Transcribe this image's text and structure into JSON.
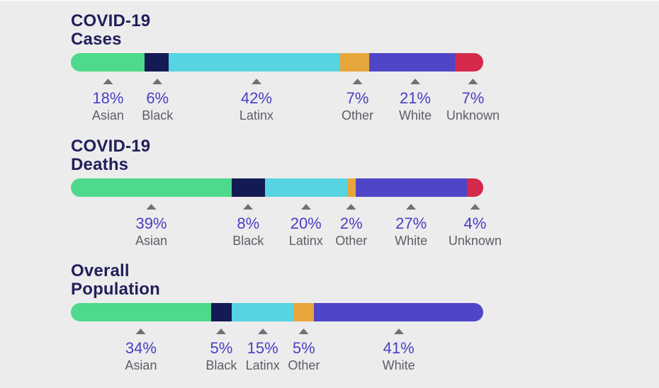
{
  "palette": {
    "background": "#ECECED",
    "title_color": "#21205A",
    "percent_color": "#4A3EC1",
    "label_color": "#5D5D66",
    "marker_color": "#70707A",
    "series_colors": {
      "Asian": "#4FD98C",
      "Black": "#141A53",
      "Latinx": "#57D4E1",
      "Other": "#E7A63C",
      "White": "#4F46C7",
      "Unknown": "#D4294A"
    }
  },
  "chart_data": [
    {
      "type": "bar",
      "layout": "horizontal-stacked",
      "title": "COVID-19 Cases",
      "title_lines": [
        "COVID-19",
        "Cases"
      ],
      "categories": [
        "Asian",
        "Black",
        "Latinx",
        "Other",
        "White",
        "Unknown"
      ],
      "values": [
        18,
        6,
        42,
        7,
        21,
        7
      ],
      "value_labels": [
        "18%",
        "6%",
        "42%",
        "7%",
        "21%",
        "7%"
      ],
      "range": [
        0,
        100
      ],
      "grid": false,
      "legend": "below-inline"
    },
    {
      "type": "bar",
      "layout": "horizontal-stacked",
      "title": "COVID-19 Deaths",
      "title_lines": [
        "COVID-19",
        "Deaths"
      ],
      "categories": [
        "Asian",
        "Black",
        "Latinx",
        "Other",
        "White",
        "Unknown"
      ],
      "values": [
        39,
        8,
        20,
        2,
        27,
        4
      ],
      "value_labels": [
        "39%",
        "8%",
        "20%",
        "2%",
        "27%",
        "4%"
      ],
      "range": [
        0,
        100
      ],
      "grid": false,
      "legend": "below-inline"
    },
    {
      "type": "bar",
      "layout": "horizontal-stacked",
      "title": "Overall Population",
      "title_lines": [
        "Overall",
        "Population"
      ],
      "categories": [
        "Asian",
        "Black",
        "Latinx",
        "Other",
        "White"
      ],
      "values": [
        34,
        5,
        15,
        5,
        41
      ],
      "value_labels": [
        "34%",
        "5%",
        "15%",
        "5%",
        "41%"
      ],
      "range": [
        0,
        100
      ],
      "grid": false,
      "legend": "below-inline"
    }
  ]
}
